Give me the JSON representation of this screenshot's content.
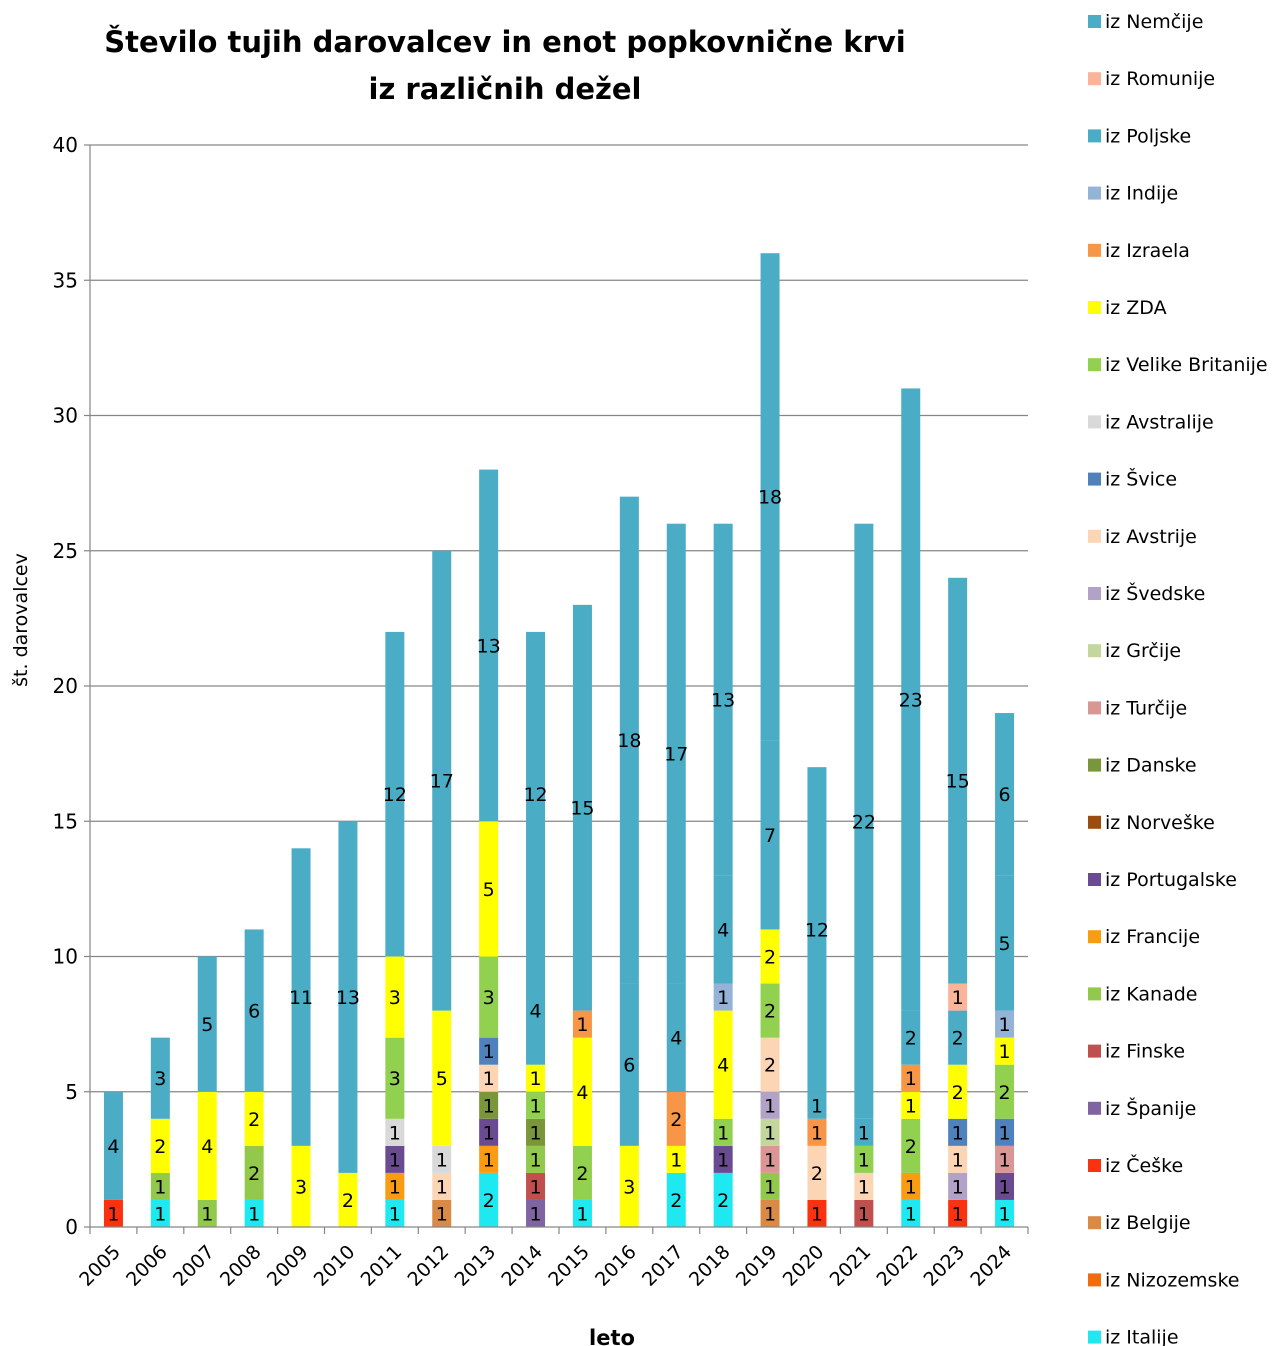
{
  "chart_data": {
    "type": "bar",
    "stacked": true,
    "title": "Število tujih darovalcev in enot popkovnične krvi iz različnih dežel",
    "xlabel": "leto",
    "ylabel": "št. darovalcev",
    "ylim": [
      0,
      40
    ],
    "yticks": [
      0,
      5,
      10,
      15,
      20,
      25,
      30,
      35,
      40
    ],
    "grid": true,
    "legend_position": "right",
    "categories": [
      "2005",
      "2006",
      "2007",
      "2008",
      "2009",
      "2010",
      "2011",
      "2012",
      "2013",
      "2014",
      "2015",
      "2016",
      "2017",
      "2018",
      "2019",
      "2020",
      "2021",
      "2022",
      "2023",
      "2024"
    ],
    "series": [
      {
        "name": "iz Italije",
        "color": "#1ee8f0",
        "values": [
          0,
          1,
          0,
          1,
          0,
          0,
          1,
          0,
          2,
          0,
          1,
          0,
          2,
          2,
          0,
          0,
          0,
          1,
          0,
          1
        ]
      },
      {
        "name": "iz Nizozemske",
        "color": "#f26b0f",
        "values": [
          0,
          0,
          0,
          0,
          0,
          0,
          0,
          0,
          0,
          0,
          0,
          0,
          0,
          0,
          0,
          0,
          0,
          0,
          0,
          0
        ]
      },
      {
        "name": "iz Belgije",
        "color": "#d98a45",
        "values": [
          0,
          0,
          0,
          0,
          0,
          0,
          0,
          1,
          0,
          0,
          0,
          0,
          0,
          0,
          1,
          0,
          0,
          0,
          0,
          0
        ]
      },
      {
        "name": "iz Češke",
        "color": "#fa3210",
        "values": [
          1,
          0,
          0,
          0,
          0,
          0,
          0,
          0,
          0,
          0,
          0,
          0,
          0,
          0,
          0,
          1,
          0,
          0,
          1,
          0
        ]
      },
      {
        "name": "iz Španije",
        "color": "#8064a2",
        "values": [
          0,
          0,
          0,
          0,
          0,
          0,
          0,
          0,
          0,
          1,
          0,
          0,
          0,
          0,
          0,
          0,
          0,
          0,
          0,
          0
        ]
      },
      {
        "name": "iz Finske",
        "color": "#c0504d",
        "values": [
          0,
          0,
          0,
          0,
          0,
          0,
          0,
          0,
          0,
          1,
          0,
          0,
          0,
          0,
          0,
          0,
          1,
          0,
          0,
          0
        ]
      },
      {
        "name": "iz Kanade",
        "color": "#92c94c",
        "values": [
          0,
          1,
          1,
          2,
          0,
          0,
          0,
          0,
          0,
          1,
          0,
          0,
          0,
          0,
          1,
          0,
          0,
          0,
          0,
          0
        ]
      },
      {
        "name": "iz Francije",
        "color": "#f99c14",
        "values": [
          0,
          0,
          0,
          0,
          0,
          0,
          1,
          0,
          1,
          0,
          0,
          0,
          0,
          0,
          0,
          0,
          0,
          1,
          0,
          0
        ]
      },
      {
        "name": "iz Portugalske",
        "color": "#6a4b91",
        "values": [
          0,
          0,
          0,
          0,
          0,
          0,
          1,
          0,
          1,
          0,
          0,
          0,
          0,
          1,
          0,
          0,
          0,
          0,
          0,
          1
        ]
      },
      {
        "name": "iz Norveške",
        "color": "#9b4d10",
        "values": [
          0,
          0,
          0,
          0,
          0,
          0,
          0,
          0,
          0,
          0,
          0,
          0,
          0,
          0,
          0,
          0,
          0,
          0,
          0,
          0
        ]
      },
      {
        "name": "iz Danske",
        "color": "#7a963a",
        "values": [
          0,
          0,
          0,
          0,
          0,
          0,
          0,
          0,
          1,
          1,
          0,
          0,
          0,
          0,
          0,
          0,
          0,
          0,
          0,
          0
        ]
      },
      {
        "name": "iz Turčije",
        "color": "#d99694",
        "values": [
          0,
          0,
          0,
          0,
          0,
          0,
          0,
          0,
          0,
          0,
          0,
          0,
          0,
          0,
          1,
          0,
          0,
          0,
          0,
          1
        ]
      },
      {
        "name": "iz Grčije",
        "color": "#c3d69b",
        "values": [
          0,
          0,
          0,
          0,
          0,
          0,
          0,
          0,
          0,
          0,
          0,
          0,
          0,
          0,
          1,
          0,
          0,
          0,
          0,
          0
        ]
      },
      {
        "name": "iz Švedske",
        "color": "#b3a2c7",
        "values": [
          0,
          0,
          0,
          0,
          0,
          0,
          0,
          0,
          0,
          0,
          0,
          0,
          0,
          0,
          1,
          0,
          0,
          0,
          1,
          0
        ]
      },
      {
        "name": "iz Avstrije",
        "color": "#fcd5b5",
        "values": [
          0,
          0,
          0,
          0,
          0,
          0,
          0,
          1,
          1,
          0,
          0,
          0,
          0,
          0,
          2,
          2,
          1,
          0,
          1,
          0
        ]
      },
      {
        "name": "iz Švice",
        "color": "#4f81bd",
        "values": [
          0,
          0,
          0,
          0,
          0,
          0,
          0,
          0,
          1,
          0,
          0,
          0,
          0,
          0,
          0,
          0,
          0,
          0,
          1,
          1
        ]
      },
      {
        "name": "iz Avstralije",
        "color": "#d9d9d9",
        "values": [
          0,
          0,
          0,
          0,
          0,
          0,
          1,
          1,
          0,
          0,
          0,
          0,
          0,
          0,
          0,
          0,
          0,
          0,
          0,
          0
        ]
      },
      {
        "name": "iz Velike Britanije",
        "color": "#92d050",
        "values": [
          0,
          0,
          0,
          0,
          0,
          0,
          3,
          0,
          3,
          1,
          2,
          0,
          0,
          1,
          2,
          0,
          1,
          2,
          0,
          2
        ]
      },
      {
        "name": "iz ZDA",
        "color": "#ffff00",
        "values": [
          0,
          2,
          4,
          2,
          3,
          2,
          3,
          5,
          5,
          1,
          4,
          3,
          1,
          4,
          2,
          0,
          0,
          1,
          2,
          1
        ]
      },
      {
        "name": "iz Izraela",
        "color": "#f79646",
        "values": [
          0,
          0,
          0,
          0,
          0,
          0,
          0,
          0,
          0,
          0,
          1,
          0,
          2,
          0,
          0,
          1,
          0,
          1,
          0,
          0
        ]
      },
      {
        "name": "iz Indije",
        "color": "#95b3d7",
        "values": [
          0,
          0,
          0,
          0,
          0,
          0,
          0,
          0,
          0,
          0,
          0,
          0,
          0,
          1,
          0,
          0,
          0,
          0,
          0,
          1
        ]
      },
      {
        "name": "iz Poljske",
        "color": "#4bacc6",
        "values": [
          0,
          0,
          0,
          0,
          0,
          0,
          0,
          0,
          0,
          4,
          0,
          6,
          4,
          4,
          7,
          1,
          1,
          2,
          2,
          5
        ]
      },
      {
        "name": "iz Romunije",
        "color": "#fab499",
        "values": [
          0,
          0,
          0,
          0,
          0,
          0,
          0,
          0,
          0,
          0,
          0,
          0,
          0,
          0,
          0,
          0,
          0,
          0,
          1,
          0
        ]
      },
      {
        "name": "iz Nemčije",
        "color": "#4bacc6",
        "values": [
          4,
          3,
          5,
          6,
          11,
          13,
          12,
          17,
          13,
          12,
          15,
          18,
          17,
          13,
          18,
          12,
          22,
          23,
          15,
          6
        ]
      }
    ]
  }
}
